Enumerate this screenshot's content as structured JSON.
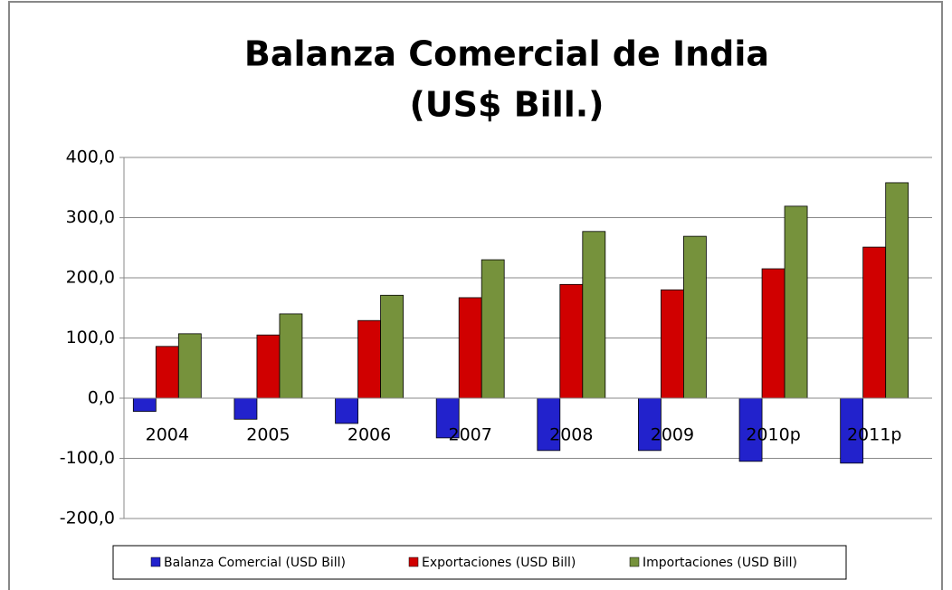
{
  "chart_data": {
    "type": "bar",
    "title": [
      "Balanza Comercial de India",
      "(US$ Bill.)"
    ],
    "categories": [
      "2004",
      "2005",
      "2006",
      "2007",
      "2008",
      "2009",
      "2010p",
      "2011p"
    ],
    "series": [
      {
        "name": "Balanza Comercial (USD Bill)",
        "color": "#2222cc",
        "values": [
          -22,
          -35,
          -42,
          -66,
          -87,
          -87,
          -105,
          -108
        ]
      },
      {
        "name": "Exportaciones (USD Bill)",
        "color": "#d00000",
        "values": [
          86,
          105,
          129,
          167,
          189,
          180,
          215,
          251
        ]
      },
      {
        "name": "Importaciones (USD Bill)",
        "color": "#76923c",
        "values": [
          107,
          140,
          171,
          230,
          277,
          269,
          319,
          358
        ]
      }
    ],
    "ylim": [
      -200,
      400
    ],
    "yticks": [
      {
        "value": -200,
        "label": "-200,0"
      },
      {
        "value": -100,
        "label": "-100,0"
      },
      {
        "value": 0,
        "label": "0,0"
      },
      {
        "value": 100,
        "label": "100,0"
      },
      {
        "value": 200,
        "label": "200,0"
      },
      {
        "value": 300,
        "label": "300,0"
      },
      {
        "value": 400,
        "label": "400,0"
      }
    ],
    "grid": true,
    "legend": "bottom"
  }
}
